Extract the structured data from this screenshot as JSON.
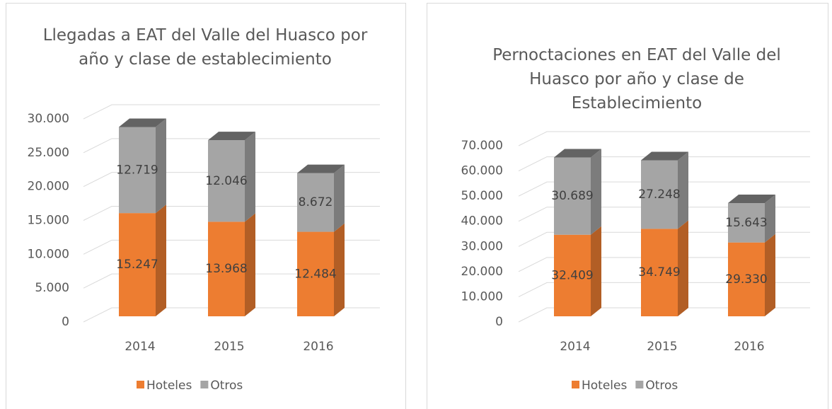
{
  "chart_data": [
    {
      "type": "bar",
      "stacked": true,
      "title": "Llegadas a EAT del Valle del Huasco por año y clase de establecimiento",
      "categories": [
        "2014",
        "2015",
        "2016"
      ],
      "series": [
        {
          "name": "Hoteles",
          "color": "#ed7d31",
          "values": [
            15247,
            13968,
            12484
          ],
          "value_labels": [
            "15.247",
            "13.968",
            "12.484"
          ]
        },
        {
          "name": "Otros",
          "color": "#a5a5a5",
          "values": [
            12719,
            12046,
            8672
          ],
          "value_labels": [
            "12.719",
            "12.046",
            "8.672"
          ]
        }
      ],
      "ylim": [
        0,
        30000
      ],
      "yticks": [
        0,
        {
          "value": 5000,
          "label": "5.000"
        },
        {
          "value": 10000,
          "label": "10.000"
        },
        {
          "value": 15000,
          "label": "15.000"
        },
        {
          "value": 20000,
          "label": "20.000"
        },
        {
          "value": 25000,
          "label": "25.000"
        },
        {
          "value": 30000,
          "label": "30.000"
        }
      ],
      "grid": true,
      "legend": "bottom"
    },
    {
      "type": "bar",
      "stacked": true,
      "title": "Pernoctaciones en EAT del Valle del Huasco por año y clase de Establecimiento",
      "categories": [
        "2014",
        "2015",
        "2016"
      ],
      "series": [
        {
          "name": "Hoteles",
          "color": "#ed7d31",
          "values": [
            32409,
            34749,
            29330
          ],
          "value_labels": [
            "32.409",
            "34.749",
            "29.330"
          ]
        },
        {
          "name": "Otros",
          "color": "#a5a5a5",
          "values": [
            30689,
            27248,
            15643
          ],
          "value_labels": [
            "30.689",
            "27.248",
            "15.643"
          ]
        }
      ],
      "ylim": [
        0,
        70000
      ],
      "yticks": [
        0,
        {
          "value": 10000,
          "label": "10.000"
        },
        {
          "value": 20000,
          "label": "20.000"
        },
        {
          "value": 30000,
          "label": "30.000"
        },
        {
          "value": 40000,
          "label": "40.000"
        },
        {
          "value": 50000,
          "label": "50.000"
        },
        {
          "value": 60000,
          "label": "60.000"
        },
        {
          "value": 70000,
          "label": "70.000"
        }
      ],
      "grid": true,
      "legend": "bottom"
    }
  ]
}
